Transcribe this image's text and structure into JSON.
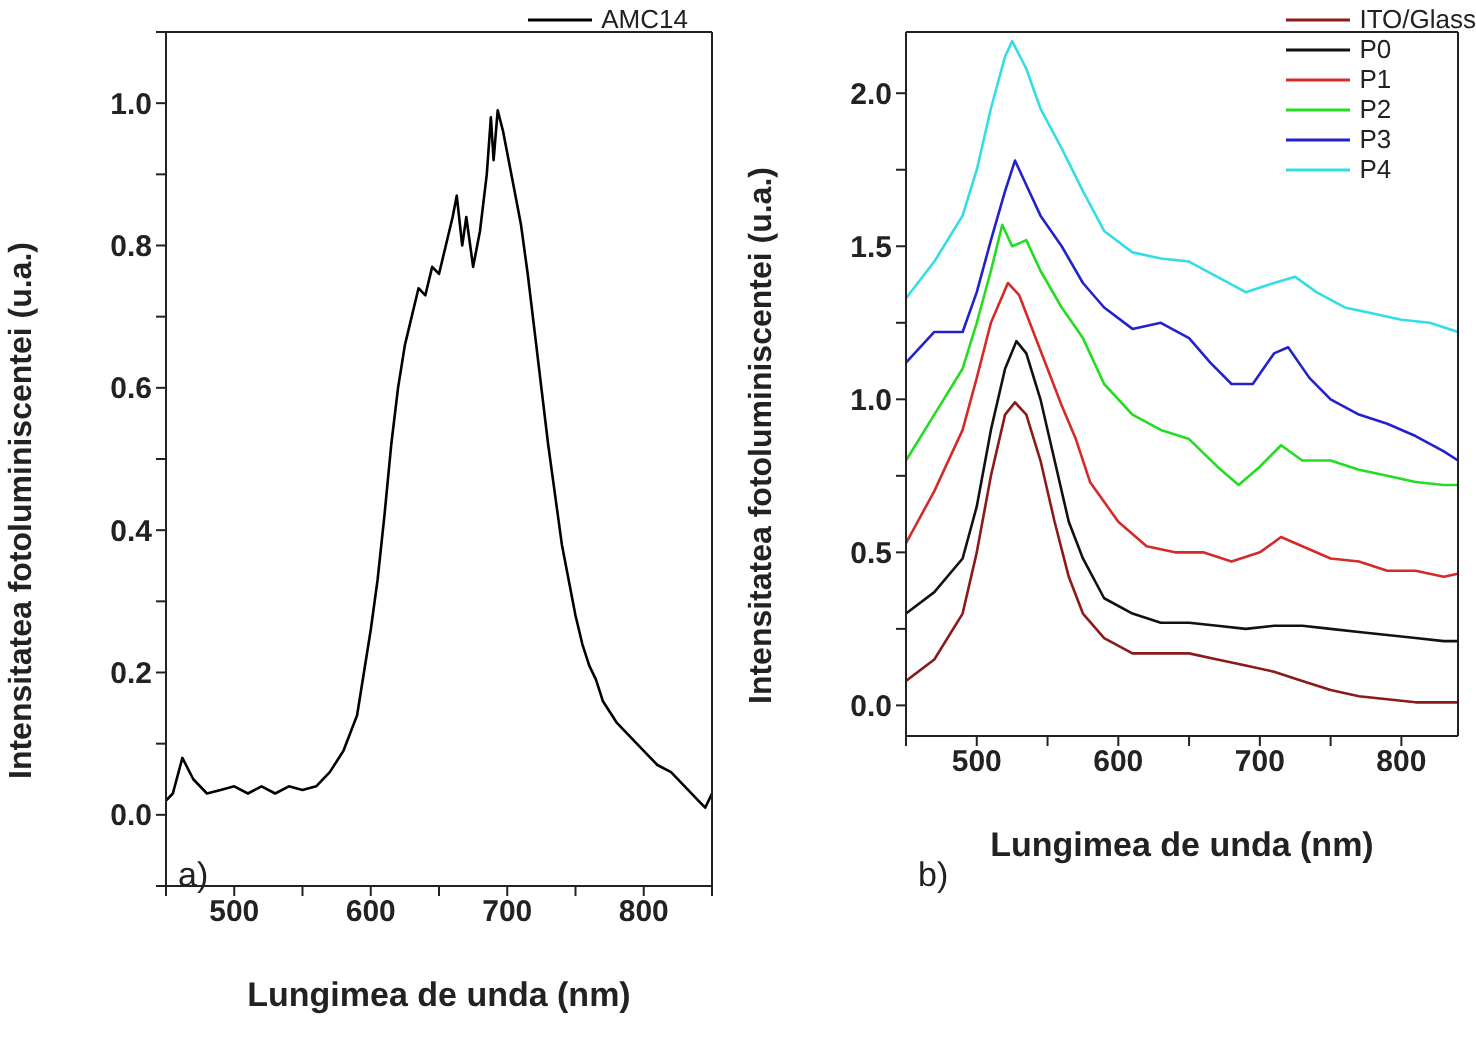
{
  "chart_data": [
    {
      "type": "line",
      "xlabel": "Lungimea de unda (nm)",
      "ylabel": "Intensitatea fotoluminiscentei (u.a.)",
      "annotations": [
        "a)"
      ],
      "legend": "top right",
      "xlim": [
        450,
        850
      ],
      "ylim": [
        -0.1,
        1.1
      ],
      "xticks": [
        {
          "value": 450,
          "label": null
        },
        500,
        {
          "value": 550,
          "label": null
        },
        600,
        {
          "value": 650,
          "label": null
        },
        700,
        {
          "value": 750,
          "label": null
        },
        800,
        {
          "value": 850,
          "label": null
        }
      ],
      "yticks": [
        {
          "value": -0.1,
          "label": null
        },
        {
          "value": 0,
          "label": "0.0"
        },
        {
          "value": 0.1,
          "label": null
        },
        {
          "value": 0.2,
          "label": "0.2"
        },
        {
          "value": 0.3,
          "label": null
        },
        {
          "value": 0.4,
          "label": "0.4"
        },
        {
          "value": 0.5,
          "label": null
        },
        {
          "value": 0.6,
          "label": "0.6"
        },
        {
          "value": 0.7,
          "label": null
        },
        {
          "value": 0.8,
          "label": "0.8"
        },
        {
          "value": 0.9,
          "label": null
        },
        {
          "value": 1,
          "label": "1.0"
        },
        {
          "value": 1.1,
          "label": null
        }
      ],
      "series": [
        {
          "name": "AMC14",
          "color": "#000000",
          "x": [
            450,
            455,
            462,
            470,
            480,
            490,
            500,
            510,
            520,
            530,
            540,
            550,
            560,
            570,
            580,
            590,
            595,
            600,
            605,
            610,
            615,
            620,
            625,
            630,
            635,
            640,
            645,
            650,
            655,
            660,
            663,
            667,
            670,
            675,
            680,
            685,
            688,
            690,
            693,
            697,
            700,
            705,
            710,
            715,
            720,
            725,
            730,
            735,
            740,
            745,
            750,
            755,
            760,
            765,
            770,
            780,
            790,
            800,
            810,
            820,
            830,
            840,
            845,
            850
          ],
          "values": [
            0.02,
            0.03,
            0.08,
            0.05,
            0.03,
            0.035,
            0.04,
            0.03,
            0.04,
            0.03,
            0.04,
            0.035,
            0.04,
            0.06,
            0.09,
            0.14,
            0.2,
            0.26,
            0.33,
            0.42,
            0.52,
            0.6,
            0.66,
            0.7,
            0.74,
            0.73,
            0.77,
            0.76,
            0.8,
            0.84,
            0.87,
            0.8,
            0.84,
            0.77,
            0.82,
            0.9,
            0.98,
            0.92,
            0.99,
            0.96,
            0.93,
            0.88,
            0.83,
            0.76,
            0.68,
            0.6,
            0.52,
            0.45,
            0.38,
            0.33,
            0.28,
            0.24,
            0.21,
            0.19,
            0.16,
            0.13,
            0.11,
            0.09,
            0.07,
            0.06,
            0.04,
            0.02,
            0.01,
            0.03
          ]
        }
      ]
    },
    {
      "type": "line",
      "xlabel": "Lungimea de unda (nm)",
      "ylabel": "Intensitatea fotoluminiscentei (u.a.)",
      "annotations": [
        "b)"
      ],
      "legend": "top right",
      "xlim": [
        450,
        840
      ],
      "ylim": [
        -0.1,
        2.2
      ],
      "xticks": [
        {
          "value": 450,
          "label": null
        },
        500,
        {
          "value": 550,
          "label": null
        },
        600,
        {
          "value": 650,
          "label": null
        },
        700,
        {
          "value": 750,
          "label": null
        },
        800
      ],
      "yticks": [
        {
          "value": 0,
          "label": "0.0"
        },
        {
          "value": 0.25,
          "label": null
        },
        {
          "value": 0.5,
          "label": "0.5"
        },
        {
          "value": 0.75,
          "label": null
        },
        {
          "value": 1,
          "label": "1.0"
        },
        {
          "value": 1.25,
          "label": null
        },
        {
          "value": 1.5,
          "label": "1.5"
        },
        {
          "value": 1.75,
          "label": null
        },
        {
          "value": 2,
          "label": "2.0"
        }
      ],
      "series": [
        {
          "name": "ITO/Glass",
          "color": "#8b1a1a",
          "x": [
            450,
            470,
            490,
            500,
            510,
            520,
            527,
            535,
            545,
            555,
            565,
            575,
            590,
            610,
            630,
            650,
            670,
            690,
            710,
            730,
            750,
            770,
            790,
            810,
            830,
            840
          ],
          "values": [
            0.08,
            0.15,
            0.3,
            0.5,
            0.75,
            0.95,
            0.99,
            0.95,
            0.8,
            0.6,
            0.42,
            0.3,
            0.22,
            0.17,
            0.17,
            0.17,
            0.15,
            0.13,
            0.11,
            0.08,
            0.05,
            0.03,
            0.02,
            0.01,
            0.01,
            0.01
          ]
        },
        {
          "name": "P0",
          "color": "#111111",
          "x": [
            450,
            470,
            490,
            500,
            510,
            520,
            528,
            535,
            545,
            555,
            565,
            575,
            590,
            610,
            630,
            650,
            670,
            690,
            710,
            730,
            750,
            770,
            790,
            810,
            830,
            840
          ],
          "values": [
            0.3,
            0.37,
            0.48,
            0.65,
            0.9,
            1.1,
            1.19,
            1.15,
            1.0,
            0.8,
            0.6,
            0.48,
            0.35,
            0.3,
            0.27,
            0.27,
            0.26,
            0.25,
            0.26,
            0.26,
            0.25,
            0.24,
            0.23,
            0.22,
            0.21,
            0.21
          ]
        },
        {
          "name": "P1",
          "color": "#d42a2a",
          "x": [
            450,
            470,
            490,
            500,
            510,
            522,
            530,
            540,
            550,
            560,
            570,
            580,
            600,
            620,
            640,
            660,
            680,
            700,
            715,
            730,
            750,
            770,
            790,
            810,
            830,
            840
          ],
          "values": [
            0.53,
            0.7,
            0.9,
            1.07,
            1.25,
            1.38,
            1.34,
            1.22,
            1.1,
            0.98,
            0.87,
            0.73,
            0.6,
            0.52,
            0.5,
            0.5,
            0.47,
            0.5,
            0.55,
            0.52,
            0.48,
            0.47,
            0.44,
            0.44,
            0.42,
            0.43
          ]
        },
        {
          "name": "P2",
          "color": "#22dd22",
          "x": [
            450,
            470,
            490,
            500,
            510,
            518,
            525,
            535,
            545,
            560,
            575,
            590,
            610,
            630,
            650,
            670,
            685,
            700,
            715,
            730,
            750,
            770,
            790,
            810,
            830,
            840
          ],
          "values": [
            0.8,
            0.95,
            1.1,
            1.25,
            1.42,
            1.57,
            1.5,
            1.52,
            1.42,
            1.3,
            1.2,
            1.05,
            0.95,
            0.9,
            0.87,
            0.78,
            0.72,
            0.78,
            0.85,
            0.8,
            0.8,
            0.77,
            0.75,
            0.73,
            0.72,
            0.72
          ]
        },
        {
          "name": "P3",
          "color": "#2222cc",
          "x": [
            450,
            470,
            490,
            500,
            510,
            520,
            527,
            535,
            545,
            560,
            575,
            590,
            610,
            630,
            650,
            665,
            680,
            695,
            710,
            720,
            735,
            750,
            770,
            790,
            810,
            830,
            840
          ],
          "values": [
            1.12,
            1.22,
            1.22,
            1.35,
            1.52,
            1.68,
            1.78,
            1.7,
            1.6,
            1.5,
            1.38,
            1.3,
            1.23,
            1.25,
            1.2,
            1.12,
            1.05,
            1.05,
            1.15,
            1.17,
            1.07,
            1.0,
            0.95,
            0.92,
            0.88,
            0.83,
            0.8
          ]
        },
        {
          "name": "P4",
          "color": "#33dde6",
          "x": [
            450,
            470,
            490,
            500,
            510,
            520,
            525,
            535,
            545,
            560,
            575,
            590,
            610,
            630,
            650,
            670,
            690,
            710,
            725,
            740,
            760,
            780,
            800,
            820,
            840
          ],
          "values": [
            1.33,
            1.45,
            1.6,
            1.75,
            1.95,
            2.12,
            2.17,
            2.08,
            1.95,
            1.82,
            1.68,
            1.55,
            1.48,
            1.46,
            1.45,
            1.4,
            1.35,
            1.38,
            1.4,
            1.35,
            1.3,
            1.28,
            1.26,
            1.25,
            1.22
          ]
        }
      ]
    }
  ]
}
